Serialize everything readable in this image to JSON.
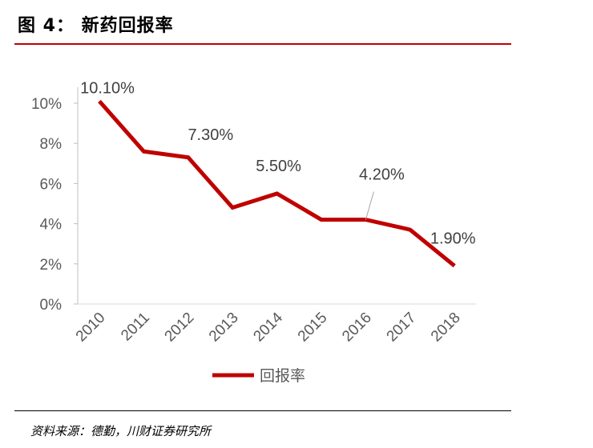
{
  "header": {
    "title": "图 4：  新药回报率"
  },
  "footer": {
    "source": "资料来源：德勤，川财证券研究所"
  },
  "chart_data": {
    "type": "line",
    "categories": [
      "2010",
      "2011",
      "2012",
      "2013",
      "2014",
      "2015",
      "2016",
      "2017",
      "2018"
    ],
    "series": [
      {
        "name": "回报率",
        "values": [
          10.1,
          7.6,
          7.3,
          4.8,
          5.5,
          4.2,
          4.2,
          3.7,
          1.9
        ],
        "color": "#c00000"
      }
    ],
    "data_labels": [
      {
        "index": 0,
        "text": "10.10%"
      },
      {
        "index": 2,
        "text": "7.30%"
      },
      {
        "index": 4,
        "text": "5.50%"
      },
      {
        "index": 6,
        "text": "4.20%"
      },
      {
        "index": 8,
        "text": "1.90%"
      }
    ],
    "yticks": [
      "0%",
      "2%",
      "4%",
      "6%",
      "8%",
      "10%"
    ],
    "ylim": [
      0,
      10
    ],
    "grid": false,
    "legend": "bottom"
  }
}
